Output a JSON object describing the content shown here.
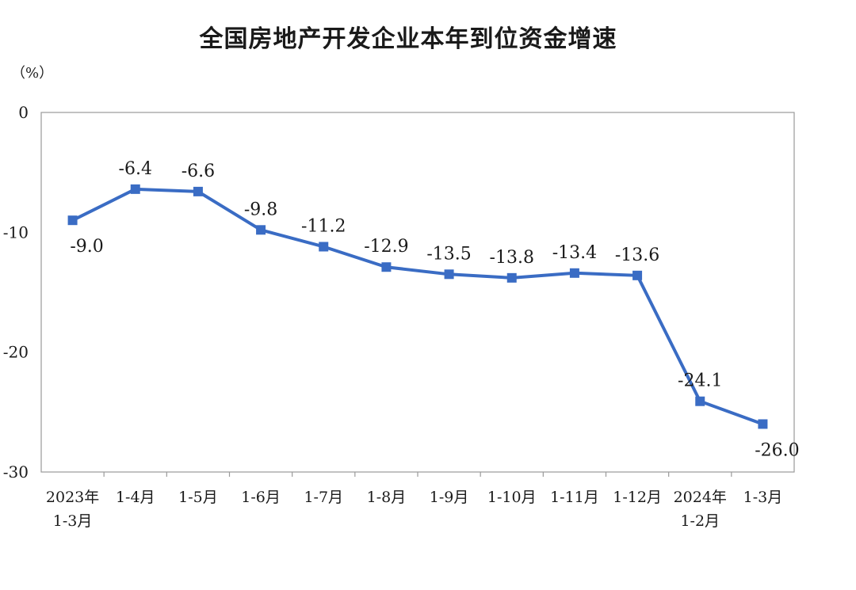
{
  "chart_data": {
    "type": "line",
    "title": "全国房地产开发企业本年到位资金增速",
    "unit_label": "（%）",
    "categories": [
      [
        "2023年",
        "1-3月"
      ],
      [
        "1-4月"
      ],
      [
        "1-5月"
      ],
      [
        "1-6月"
      ],
      [
        "1-7月"
      ],
      [
        "1-8月"
      ],
      [
        "1-9月"
      ],
      [
        "1-10月"
      ],
      [
        "1-11月"
      ],
      [
        "1-12月"
      ],
      [
        "2024年",
        "1-2月"
      ],
      [
        "1-3月"
      ]
    ],
    "values": [
      -9.0,
      -6.4,
      -6.6,
      -9.8,
      -11.2,
      -12.9,
      -13.5,
      -13.8,
      -13.4,
      -13.6,
      -24.1,
      -26.0
    ],
    "data_labels": [
      "-9.0",
      "-6.4",
      "-6.6",
      "-9.8",
      "-11.2",
      "-12.9",
      "-13.5",
      "-13.8",
      "-13.4",
      "-13.6",
      "-24.1",
      "-26.0"
    ],
    "ylim": [
      -30,
      0
    ],
    "yticks": [
      0,
      -10,
      -20,
      -30
    ],
    "ytick_labels": [
      "0",
      "-10",
      "-20",
      "-30"
    ],
    "grid": false,
    "legend": "none",
    "series_color": "#3a6cc4"
  }
}
